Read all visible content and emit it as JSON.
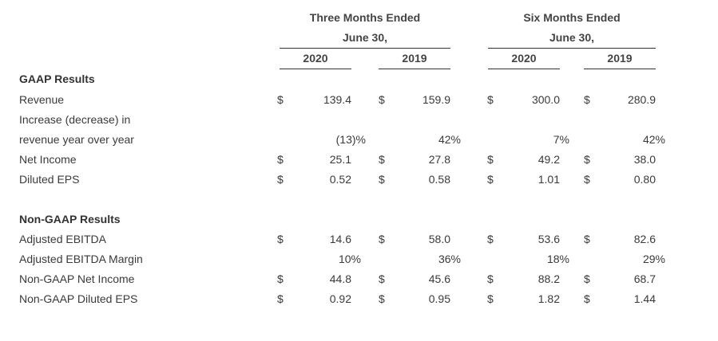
{
  "header": {
    "three_months_line1": "Three Months Ended",
    "three_months_line2": "June 30,",
    "six_months_line1": "Six Months Ended",
    "six_months_line2": "June 30,",
    "years": [
      "2020",
      "2019",
      "2020",
      "2019"
    ]
  },
  "gaap": {
    "title": "GAAP Results",
    "revenue": {
      "label": "Revenue",
      "cur": [
        "$",
        "$",
        "$",
        "$"
      ],
      "values": [
        "139.4",
        "159.9",
        "300.0",
        "280.9"
      ]
    },
    "increase_label_1": "Increase (decrease) in",
    "increase_label_2": "revenue year over year",
    "increase_values": [
      "(13)%",
      "42%",
      "7%",
      "42%"
    ],
    "net_income": {
      "label": "Net Income",
      "cur": [
        "$",
        "$",
        "$",
        "$"
      ],
      "values": [
        "25.1",
        "27.8",
        "49.2",
        "38.0"
      ]
    },
    "diluted_eps": {
      "label": "Diluted EPS",
      "cur": [
        "$",
        "$",
        "$",
        "$"
      ],
      "values": [
        "0.52",
        "0.58",
        "1.01",
        "0.80"
      ]
    }
  },
  "nongaap": {
    "title": "Non-GAAP Results",
    "adj_ebitda": {
      "label": "Adjusted EBITDA",
      "cur": [
        "$",
        "$",
        "$",
        "$"
      ],
      "values": [
        "14.6",
        "58.0",
        "53.6",
        "82.6"
      ]
    },
    "adj_ebitda_margin": {
      "label": "Adjusted EBITDA Margin",
      "values": [
        "10%",
        "36%",
        "18%",
        "29%"
      ]
    },
    "net_income": {
      "label": "Non-GAAP Net Income",
      "cur": [
        "$",
        "$",
        "$",
        "$"
      ],
      "values": [
        "44.8",
        "45.6",
        "88.2",
        "68.7"
      ]
    },
    "diluted_eps": {
      "label": "Non-GAAP Diluted EPS",
      "cur": [
        "$",
        "$",
        "$",
        "$"
      ],
      "values": [
        "0.92",
        "0.95",
        "1.82",
        "1.44"
      ]
    }
  }
}
